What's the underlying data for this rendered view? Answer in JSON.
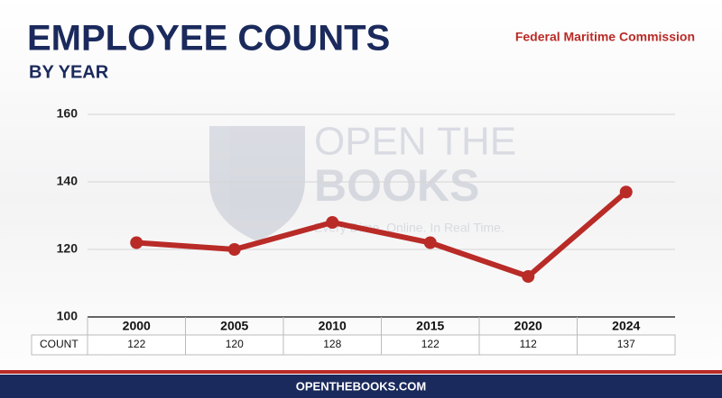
{
  "chart_data": {
    "type": "line",
    "title": "EMPLOYEE COUNTS",
    "subtitle": "BY YEAR",
    "source": "Federal Maritime Commission",
    "categories": [
      "2000",
      "2005",
      "2010",
      "2015",
      "2020",
      "2024"
    ],
    "series": [
      {
        "name": "COUNT",
        "color": "#b92b27",
        "values": [
          122,
          120,
          128,
          122,
          112,
          137
        ]
      }
    ],
    "ylim": [
      100,
      160
    ],
    "yticks": [
      100,
      120,
      140,
      160
    ],
    "grid": true,
    "watermark": [
      "OPEN THE",
      "BOOKS",
      "Every Dime. Online. In Real Time."
    ],
    "footer": "OPENTHEBOOKS.COM"
  }
}
